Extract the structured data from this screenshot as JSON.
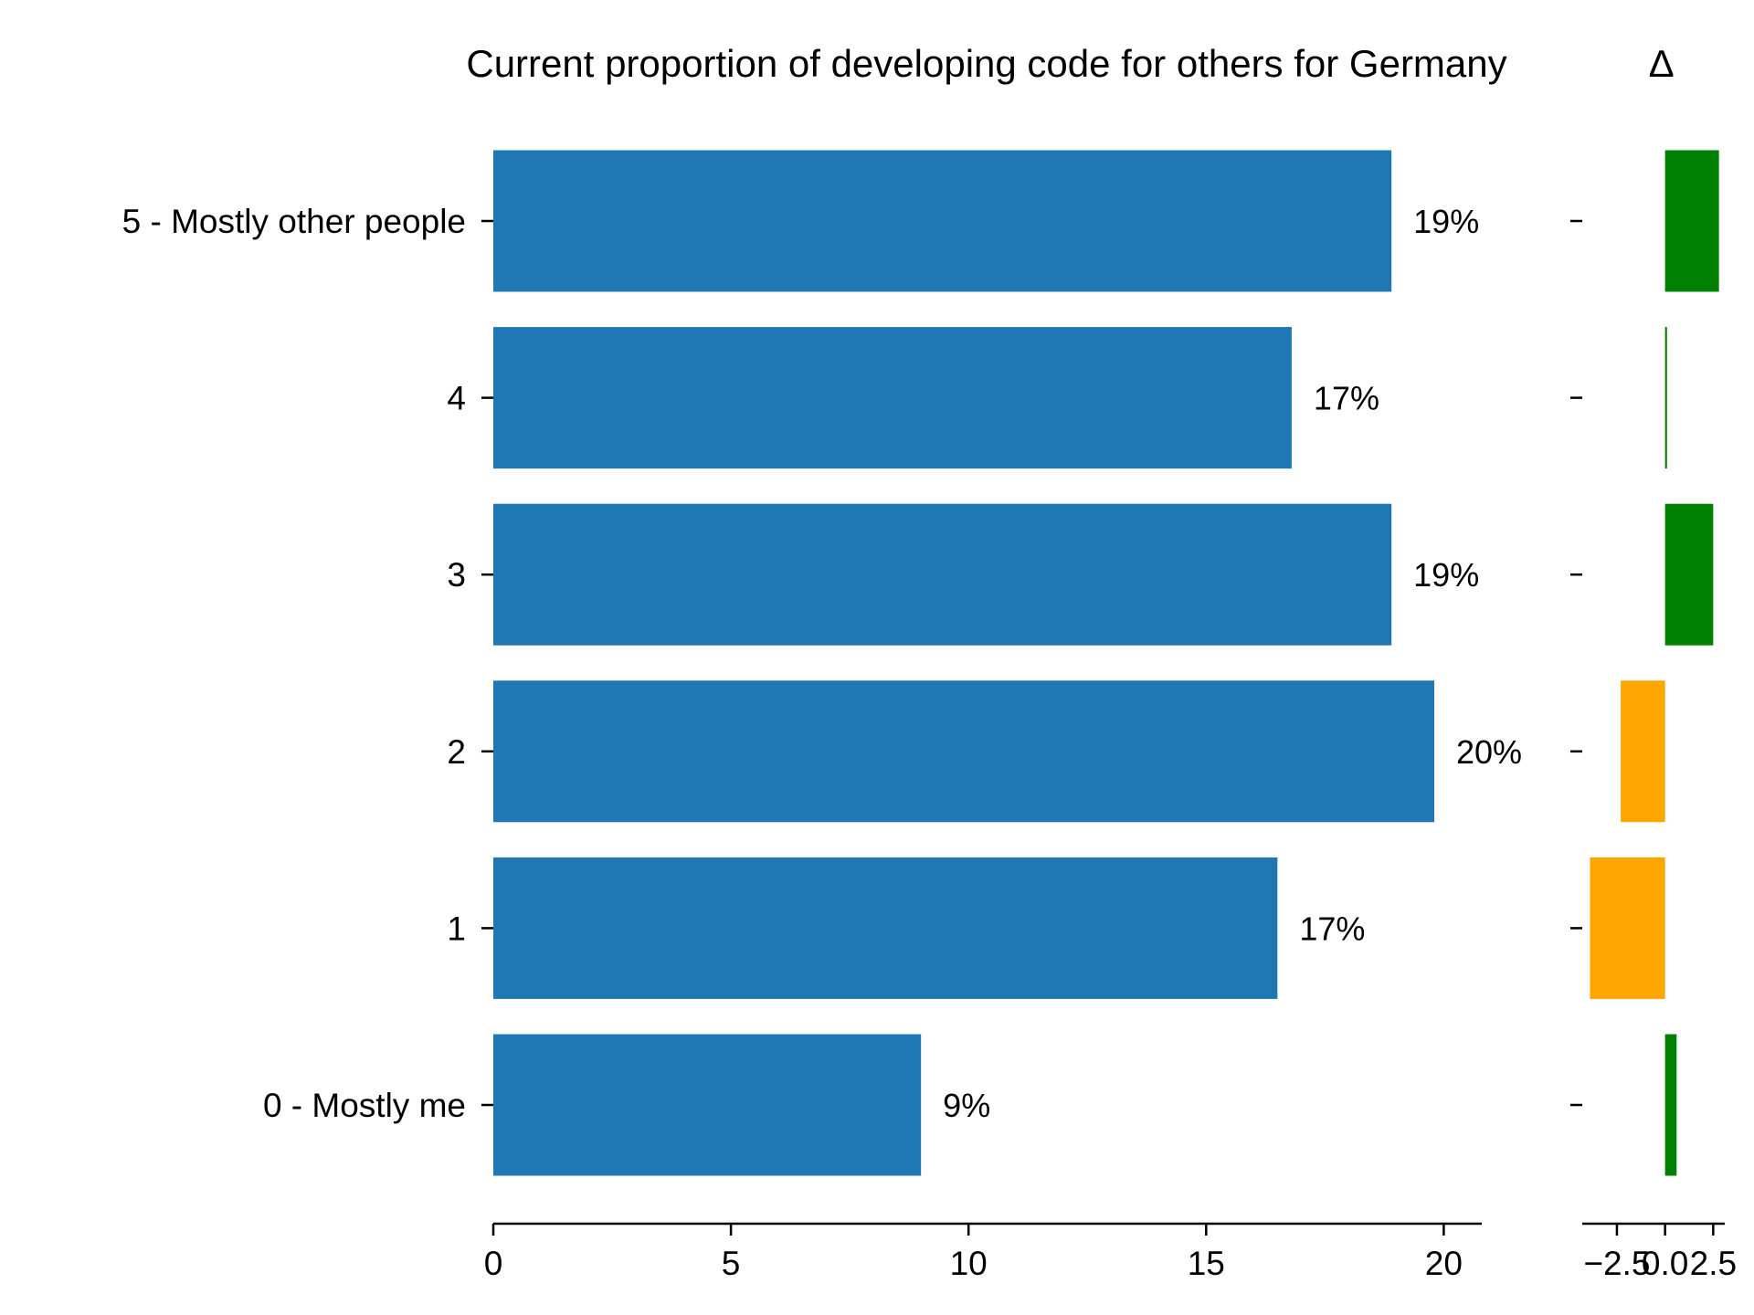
{
  "chart_data": [
    {
      "type": "bar",
      "orientation": "horizontal",
      "title": "Current proportion of developing code for others for Germany",
      "categories": [
        "0 - Mostly me",
        "1",
        "2",
        "3",
        "4",
        "5 - Mostly other people"
      ],
      "values": [
        9,
        16.5,
        19.8,
        18.9,
        16.8,
        18.9
      ],
      "data_labels": [
        "9%",
        "17%",
        "20%",
        "19%",
        "17%",
        "19%"
      ],
      "xlim": [
        0,
        20.8
      ],
      "xticks": [
        0,
        5,
        10,
        15,
        20
      ],
      "xtick_labels": [
        "0",
        "5",
        "10",
        "15",
        "20"
      ],
      "bar_color": "#1f77b4",
      "grid": false
    },
    {
      "type": "bar",
      "orientation": "horizontal",
      "title": "Δ",
      "categories": [
        "0 - Mostly me",
        "1",
        "2",
        "3",
        "4",
        "5 - Mostly other people"
      ],
      "values": [
        0.6,
        -3.9,
        -2.3,
        2.5,
        0.1,
        2.8
      ],
      "xlim": [
        -4.3,
        3.1
      ],
      "xticks": [
        -2.5,
        0.0,
        2.5
      ],
      "xtick_labels": [
        "−2.5",
        "0.0",
        "2.5"
      ],
      "positive_color": "#008000",
      "negative_color": "#ffa500",
      "grid": false
    }
  ]
}
